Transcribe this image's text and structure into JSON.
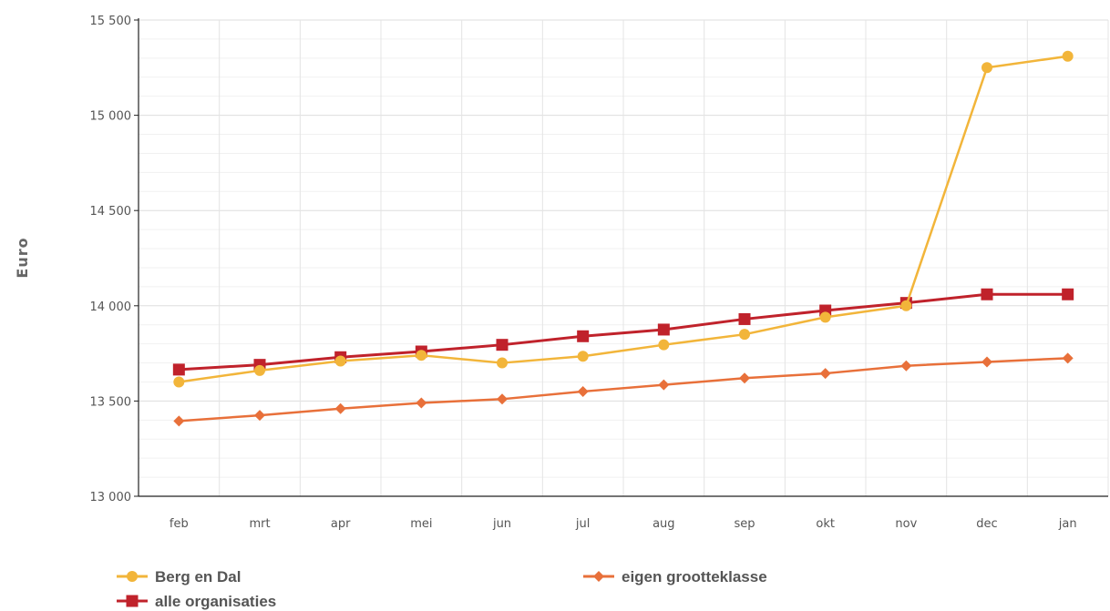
{
  "chart_data": {
    "type": "line",
    "categories": [
      "feb",
      "mrt",
      "apr",
      "mei",
      "jun",
      "jul",
      "aug",
      "sep",
      "okt",
      "nov",
      "dec",
      "jan"
    ],
    "ylabel": "Euro",
    "xlabel": "",
    "ylim": [
      13000,
      15500
    ],
    "yticks": [
      13000,
      13500,
      14000,
      14500,
      15000,
      15500
    ],
    "ytick_labels": [
      "13 000",
      "13 500",
      "14 000",
      "14 500",
      "15 000",
      "15 500"
    ],
    "grid": true,
    "legend_position": "bottom",
    "series": [
      {
        "name": "Berg en Dal",
        "color": "#f2b53a",
        "marker": "circle",
        "values": [
          13600,
          13660,
          13710,
          13740,
          13700,
          13735,
          13795,
          13850,
          13940,
          14000,
          15250,
          15310
        ]
      },
      {
        "name": "eigen grootteklasse",
        "color": "#e8703a",
        "marker": "diamond",
        "values": [
          13395,
          13425,
          13460,
          13490,
          13510,
          13550,
          13585,
          13620,
          13645,
          13685,
          13705,
          13725
        ]
      },
      {
        "name": "alle organisaties",
        "color": "#c0222b",
        "marker": "square",
        "values": [
          13665,
          13690,
          13730,
          13760,
          13795,
          13840,
          13875,
          13930,
          13975,
          14015,
          14060,
          14060
        ]
      }
    ]
  }
}
